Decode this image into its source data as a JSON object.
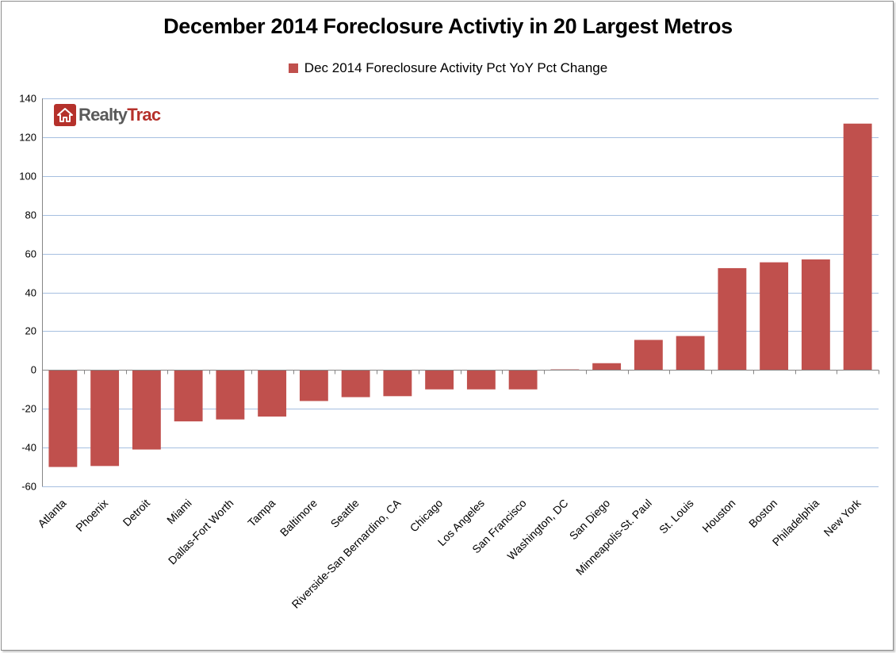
{
  "chart_data": {
    "type": "bar",
    "title": "December 2014 Foreclosure Activtiy in 20 Largest Metros",
    "series": [
      {
        "name": "Dec 2014 Foreclosure Activity Pct YoY Pct Change",
        "color": "#c0504d",
        "values": [
          -50,
          -49.5,
          -41,
          -26.5,
          -25.5,
          -24,
          -16,
          -14,
          -13.5,
          -10,
          -10,
          -10,
          0.3,
          3.5,
          15.5,
          17.5,
          52.5,
          55.5,
          57,
          127
        ]
      }
    ],
    "categories": [
      "Atlanta",
      "Phoenix",
      "Detroit",
      "Miami",
      "Dallas-Fort Worth",
      "Tampa",
      "Baltimore",
      "Seattle",
      "Riverside-San Bernardino, CA",
      "Chicago",
      "Los Angeles",
      "San Francisco",
      "Washington, DC",
      "San Diego",
      "Minneapolis-St. Paul",
      "St. Louis",
      "Houston",
      "Boston",
      "Philadelphia",
      "New York"
    ],
    "ylim": [
      -60,
      140
    ],
    "yticks": [
      -60,
      -40,
      -20,
      0,
      20,
      40,
      60,
      80,
      100,
      120,
      140
    ],
    "grid": true,
    "gridline_color": "#a6bfe0",
    "legend_position": "top-center",
    "xlabel": "",
    "ylabel": ""
  },
  "logo": {
    "realty": "Realty",
    "trac": "Trac",
    "brand_color": "#b5312b"
  }
}
